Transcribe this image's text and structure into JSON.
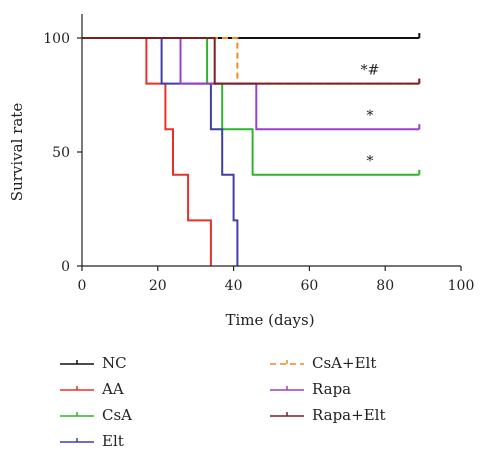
{
  "chart_data": {
    "type": "line",
    "step": true,
    "title": "",
    "xlabel": "Time (days)",
    "ylabel": "Survival rate",
    "xlim": [
      0,
      100
    ],
    "ylim": [
      0,
      100
    ],
    "xticks": [
      0,
      20,
      40,
      60,
      80,
      100
    ],
    "yticks": [
      0,
      50,
      100
    ],
    "grid": false,
    "legend_position": "bottom",
    "series": [
      {
        "name": "NC",
        "color": "#111111",
        "dashed": false,
        "points": [
          [
            0,
            100
          ],
          [
            89,
            100
          ]
        ]
      },
      {
        "name": "AA",
        "color": "#e8302a",
        "dashed": false,
        "points": [
          [
            0,
            100
          ],
          [
            17,
            100
          ],
          [
            17,
            80
          ],
          [
            22,
            80
          ],
          [
            22,
            60
          ],
          [
            24,
            60
          ],
          [
            24,
            40
          ],
          [
            28,
            40
          ],
          [
            28,
            20
          ],
          [
            34,
            20
          ],
          [
            34,
            0
          ]
        ]
      },
      {
        "name": "CsA",
        "color": "#2db52d",
        "dashed": false,
        "points": [
          [
            0,
            100
          ],
          [
            33,
            100
          ],
          [
            33,
            80
          ],
          [
            37,
            80
          ],
          [
            37,
            60
          ],
          [
            45,
            60
          ],
          [
            45,
            40
          ],
          [
            89,
            40
          ]
        ]
      },
      {
        "name": "Elt",
        "color": "#3f3fa8",
        "dashed": false,
        "points": [
          [
            0,
            100
          ],
          [
            21,
            100
          ],
          [
            21,
            80
          ],
          [
            34,
            80
          ],
          [
            34,
            60
          ],
          [
            37,
            60
          ],
          [
            37,
            40
          ],
          [
            40,
            40
          ],
          [
            40,
            20
          ],
          [
            41,
            20
          ],
          [
            41,
            0
          ]
        ]
      },
      {
        "name": "CsA+Elt",
        "color": "#f08a24",
        "dashed": true,
        "points": [
          [
            0,
            100
          ],
          [
            41,
            100
          ],
          [
            41,
            80
          ],
          [
            89,
            80
          ]
        ]
      },
      {
        "name": "Rapa",
        "color": "#9b3fc8",
        "dashed": false,
        "points": [
          [
            0,
            100
          ],
          [
            26,
            100
          ],
          [
            26,
            80
          ],
          [
            46,
            80
          ],
          [
            46,
            60
          ],
          [
            89,
            60
          ]
        ]
      },
      {
        "name": "Rapa+Elt",
        "color": "#7a1f1f",
        "dashed": false,
        "points": [
          [
            0,
            100
          ],
          [
            35,
            100
          ],
          [
            35,
            80
          ],
          [
            89,
            80
          ]
        ]
      }
    ],
    "annotations": [
      {
        "text": "*#",
        "x": 76,
        "y": 84
      },
      {
        "text": "*",
        "x": 76,
        "y": 64
      },
      {
        "text": "*",
        "x": 76,
        "y": 44
      }
    ]
  }
}
